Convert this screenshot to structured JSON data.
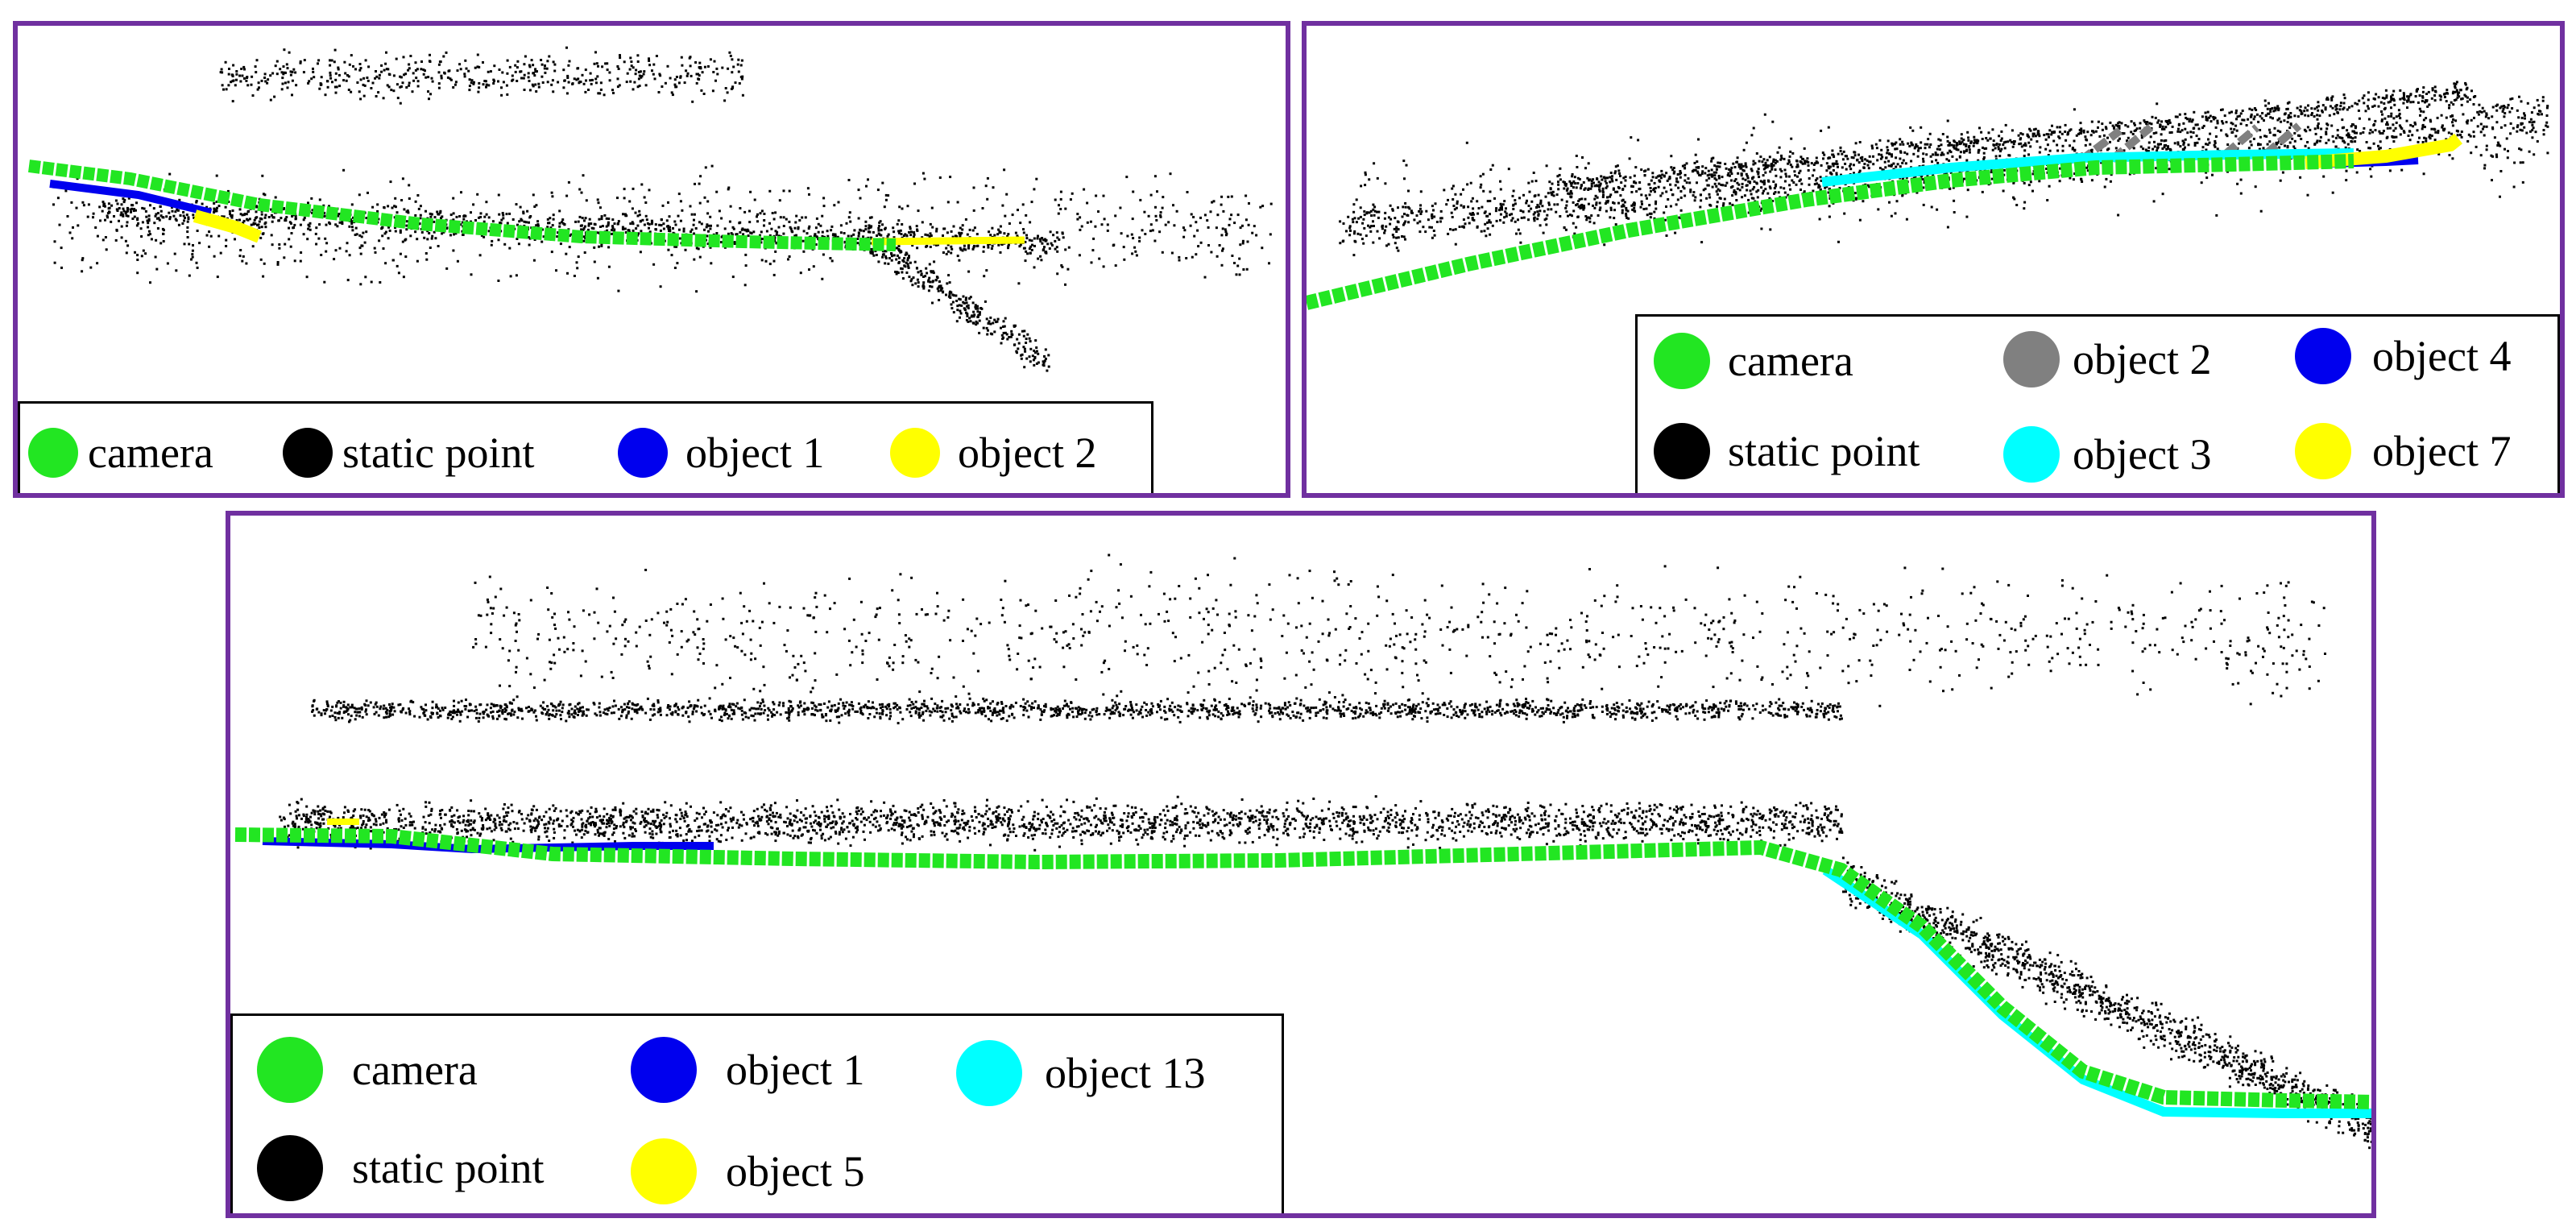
{
  "colors": {
    "frame": "#7030a0",
    "camera": "#22e622",
    "static_point": "#000000",
    "object_blue": "#0000ee",
    "object_yellow": "#ffff00",
    "object_gray": "#808080",
    "object_cyan": "#00ffff"
  },
  "panels": [
    {
      "legend": [
        {
          "label": "camera",
          "color": "#22e622"
        },
        {
          "label": "static point",
          "color": "#000000"
        },
        {
          "label": "object 1",
          "color": "#0000ee"
        },
        {
          "label": "object 2",
          "color": "#ffff00"
        }
      ]
    },
    {
      "legend": [
        {
          "label": "camera",
          "color": "#22e622"
        },
        {
          "label": "object 2",
          "color": "#808080"
        },
        {
          "label": "object 4",
          "color": "#0000ee"
        },
        {
          "label": "static point",
          "color": "#000000"
        },
        {
          "label": "object 3",
          "color": "#00ffff"
        },
        {
          "label": "object 7",
          "color": "#ffff00"
        }
      ]
    },
    {
      "legend": [
        {
          "label": "camera",
          "color": "#22e622"
        },
        {
          "label": "object 1",
          "color": "#0000ee"
        },
        {
          "label": "object 13",
          "color": "#00ffff"
        },
        {
          "label": "static point",
          "color": "#000000"
        },
        {
          "label": "object 5",
          "color": "#ffff00"
        }
      ]
    }
  ]
}
